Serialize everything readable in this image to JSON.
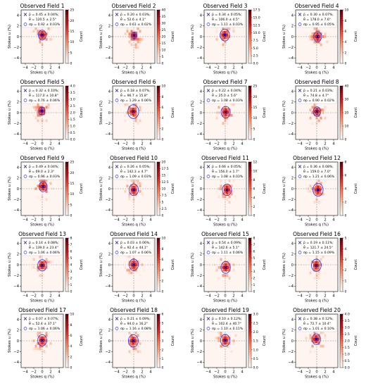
{
  "figure": {
    "xlabel": "Stokes q (%)",
    "ylabel": "Stokes u (%)",
    "colorbar_label": "Count",
    "legend_labels": {
      "p": "p̄ = {v} ± {e}%;",
      "theta": "θ̄ = {v} ± {e}°",
      "sigma": "σp = {v} ± {e}%"
    },
    "x_ticks": [
      "−4",
      "−2",
      "0",
      "2",
      "4"
    ],
    "y_ticks": [
      "−4",
      "−2",
      "0",
      "2",
      "4"
    ]
  },
  "colors": {
    "hist_low": "#fff5f0",
    "hist_high": "#67000d",
    "mean_marker": "#0000cc",
    "circle": "#3b3bff",
    "crosshair": "#8a8a8a"
  },
  "chart_data": [
    {
      "type": "heatmap",
      "title": "Observed Field 1",
      "p": [
        "0.45",
        "0.04"
      ],
      "theta": [
        "120.5",
        "2.5"
      ],
      "sigma": [
        "0.92",
        "0.03"
      ],
      "center": [
        0.0,
        0.3
      ],
      "circle_radius": 0.92,
      "cbar_max": 25,
      "cbar_ticks": [
        0,
        5,
        10,
        15,
        20,
        25
      ],
      "xlim": [
        -5,
        5
      ],
      "ylim": [
        -5,
        5
      ]
    },
    {
      "type": "heatmap",
      "title": "Observed Field 2",
      "p": [
        "0.20",
        "0.03"
      ],
      "theta": [
        "52.6",
        "4.1"
      ],
      "sigma": [
        "0.61",
        "0.02"
      ],
      "center": [
        0.1,
        0.2
      ],
      "circle_radius": 0.61,
      "cbar_max": 40,
      "cbar_ticks": [
        0,
        5,
        10,
        15,
        20,
        25,
        30,
        35,
        40
      ],
      "xlim": [
        -5,
        5
      ],
      "ylim": [
        -5,
        5
      ]
    },
    {
      "type": "heatmap",
      "title": "Observed Field 3",
      "p": [
        "0.34",
        "0.05"
      ],
      "theta": [
        "106.0",
        "4.5"
      ],
      "sigma": [
        "1.11",
        "0.03"
      ],
      "center": [
        -0.1,
        0.3
      ],
      "circle_radius": 1.11,
      "cbar_max": 17.5,
      "cbar_ticks": [
        0,
        2.5,
        5.0,
        7.5,
        10.0,
        12.5,
        15.0,
        17.5
      ],
      "xlim": [
        -5,
        5
      ],
      "ylim": [
        -5,
        5
      ]
    },
    {
      "type": "heatmap",
      "title": "Observed Field 4",
      "p": [
        "0.30",
        "0.07"
      ],
      "theta": [
        "178.0",
        "7.6"
      ],
      "sigma": [
        "0.95",
        "0.05"
      ],
      "center": [
        0.2,
        0.0
      ],
      "circle_radius": 0.95,
      "cbar_max": 10,
      "cbar_ticks": [
        0,
        2,
        4,
        6,
        8,
        10
      ],
      "xlim": [
        -5,
        5
      ],
      "ylim": [
        -5,
        5
      ]
    },
    {
      "type": "heatmap",
      "title": "Observed Field 5",
      "p": [
        "0.32",
        "0.10"
      ],
      "theta": [
        "117.0",
        "10.8"
      ],
      "sigma": [
        "0.76",
        "0.06"
      ],
      "center": [
        -0.1,
        0.3
      ],
      "circle_radius": 0.76,
      "cbar_max": 4.0,
      "cbar_ticks": [
        0,
        0.5,
        1.0,
        1.5,
        2.0,
        2.5,
        3.0,
        3.5,
        4.0
      ],
      "xlim": [
        -5,
        5
      ],
      "ylim": [
        -5,
        5
      ]
    },
    {
      "type": "heatmap",
      "title": "Observed Field 6",
      "p": [
        "0.18",
        "0.07"
      ],
      "theta": [
        "96.7",
        "15.8"
      ],
      "sigma": [
        "1.29",
        "0.06"
      ],
      "center": [
        -0.1,
        0.2
      ],
      "circle_radius": 1.29,
      "cbar_max": 10,
      "cbar_ticks": [
        0,
        2,
        4,
        6,
        8,
        10
      ],
      "xlim": [
        -5,
        5
      ],
      "ylim": [
        -5,
        5
      ]
    },
    {
      "type": "heatmap",
      "title": "Observed Field 7",
      "p": [
        "0.22",
        "0.04"
      ],
      "theta": [
        "25.0",
        "5.6"
      ],
      "sigma": [
        "1.08",
        "0.03"
      ],
      "center": [
        0.1,
        0.1
      ],
      "circle_radius": 1.08,
      "cbar_max": 25,
      "cbar_ticks": [
        0,
        5,
        10,
        15,
        20,
        25
      ],
      "xlim": [
        -5,
        5
      ],
      "ylim": [
        -5,
        5
      ]
    },
    {
      "type": "heatmap",
      "title": "Observed Field 8",
      "p": [
        "0.21",
        "0.03"
      ],
      "theta": [
        "74.8",
        "4.7"
      ],
      "sigma": [
        "0.90",
        "0.02"
      ],
      "center": [
        0.05,
        0.2
      ],
      "circle_radius": 0.9,
      "cbar_max": 40,
      "cbar_ticks": [
        0,
        10,
        20,
        30,
        40
      ],
      "xlim": [
        -5,
        5
      ],
      "ylim": [
        -5,
        5
      ]
    },
    {
      "type": "heatmap",
      "title": "Observed Field 9",
      "p": [
        "0.49",
        "0.04"
      ],
      "theta": [
        "69.0",
        "2.3"
      ],
      "sigma": [
        "0.96",
        "0.03"
      ],
      "center": [
        0.2,
        0.4
      ],
      "circle_radius": 0.96,
      "cbar_max": 25,
      "cbar_ticks": [
        0,
        5,
        10,
        15,
        20,
        25
      ],
      "xlim": [
        -5,
        5
      ],
      "ylim": [
        -5,
        5
      ]
    },
    {
      "type": "heatmap",
      "title": "Observed Field 10",
      "p": [
        "0.26",
        "0.05"
      ],
      "theta": [
        "142.3",
        "4.7"
      ],
      "sigma": [
        "1.09",
        "0.03"
      ],
      "center": [
        0.0,
        -0.2
      ],
      "circle_radius": 1.09,
      "cbar_max": 20.0,
      "cbar_ticks": [
        0,
        2.5,
        5.0,
        7.5,
        10.0,
        12.5,
        15.0,
        17.5,
        20.0
      ],
      "xlim": [
        -5,
        5
      ],
      "ylim": [
        -5,
        5
      ]
    },
    {
      "type": "heatmap",
      "title": "Observed Field 11",
      "p": [
        "0.66",
        "0.05"
      ],
      "theta": [
        "156.0",
        "1.7"
      ],
      "sigma": [
        "1.08",
        "0.03"
      ],
      "center": [
        0.4,
        -0.2
      ],
      "circle_radius": 1.08,
      "cbar_max": 12,
      "cbar_ticks": [
        0,
        2,
        4,
        6,
        8,
        10,
        12
      ],
      "xlim": [
        -5,
        5
      ],
      "ylim": [
        -5,
        5
      ]
    },
    {
      "type": "heatmap",
      "title": "Observed Field 12",
      "p": [
        "0.36",
        "0.08"
      ],
      "theta": [
        "159.0",
        "7.0"
      ],
      "sigma": [
        "1.21",
        "0.06"
      ],
      "center": [
        0.3,
        -0.2
      ],
      "circle_radius": 1.21,
      "cbar_max": 8,
      "cbar_ticks": [
        0,
        2,
        4,
        6,
        8
      ],
      "xlim": [
        -5,
        5
      ],
      "ylim": [
        -5,
        5
      ]
    },
    {
      "type": "heatmap",
      "title": "Observed Field 13",
      "p": [
        "0.14",
        "0.08"
      ],
      "theta": [
        "139.0",
        "23.4"
      ],
      "sigma": [
        "1.06",
        "0.06"
      ],
      "center": [
        0.0,
        -0.1
      ],
      "circle_radius": 1.06,
      "cbar_max": 8,
      "cbar_ticks": [
        0,
        1,
        2,
        3,
        4,
        5,
        6,
        7,
        8
      ],
      "xlim": [
        -5,
        5
      ],
      "ylim": [
        -5,
        5
      ]
    },
    {
      "type": "heatmap",
      "title": "Observed Field 14",
      "p": [
        "0.03",
        "0.06"
      ],
      "theta": [
        "92.4",
        "44.1"
      ],
      "sigma": [
        "1.07",
        "0.06"
      ],
      "center": [
        0.0,
        0.0
      ],
      "circle_radius": 1.07,
      "cbar_max": 10,
      "cbar_ticks": [
        0,
        2,
        4,
        6,
        8,
        10
      ],
      "xlim": [
        -5,
        5
      ],
      "ylim": [
        -5,
        5
      ]
    },
    {
      "type": "heatmap",
      "title": "Observed Field 15",
      "p": [
        "0.54",
        "0.09"
      ],
      "theta": [
        "142.6",
        "5.1"
      ],
      "sigma": [
        "1.11",
        "0.06"
      ],
      "center": [
        0.1,
        -0.5
      ],
      "circle_radius": 1.11,
      "cbar_max": 8,
      "cbar_ticks": [
        0,
        1,
        2,
        3,
        4,
        5,
        6,
        7,
        8
      ],
      "xlim": [
        -5,
        5
      ],
      "ylim": [
        -5,
        5
      ]
    },
    {
      "type": "heatmap",
      "title": "Observed Field 16",
      "p": [
        "0.19",
        "0.11"
      ],
      "theta": [
        "121.7",
        "24.5"
      ],
      "sigma": [
        "1.15",
        "0.09"
      ],
      "center": [
        -0.1,
        -0.1
      ],
      "circle_radius": 1.15,
      "cbar_max": 5,
      "cbar_ticks": [
        0,
        1,
        2,
        3,
        4,
        5
      ],
      "xlim": [
        -5,
        5
      ],
      "ylim": [
        -5,
        5
      ]
    },
    {
      "type": "heatmap",
      "title": "Observed Field 17",
      "p": [
        "0.07",
        "0.07"
      ],
      "theta": [
        "52.4",
        "37.1"
      ],
      "sigma": [
        "1.06",
        "0.06"
      ],
      "center": [
        0.0,
        0.1
      ],
      "circle_radius": 1.06,
      "cbar_max": 10,
      "cbar_ticks": [
        0,
        2,
        4,
        6,
        8,
        10
      ],
      "xlim": [
        -5,
        5
      ],
      "ylim": [
        -5,
        5
      ]
    },
    {
      "type": "heatmap",
      "title": "Observed Field 18",
      "p": [
        "0.21",
        "0.09"
      ],
      "theta": [
        "94.0",
        "16.2"
      ],
      "sigma": [
        "1.16",
        "0.08"
      ],
      "center": [
        -0.1,
        0.0
      ],
      "circle_radius": 1.16,
      "cbar_max": 6,
      "cbar_ticks": [
        0,
        1,
        2,
        3,
        4,
        5,
        6
      ],
      "xlim": [
        -5,
        5
      ],
      "ylim": [
        -5,
        5
      ]
    },
    {
      "type": "heatmap",
      "title": "Observed Field 19",
      "p": [
        "0.10",
        "0.12"
      ],
      "theta": [
        "102.4",
        "40.7"
      ],
      "sigma": [
        "1.10",
        "0.11"
      ],
      "center": [
        0.0,
        0.1
      ],
      "circle_radius": 1.1,
      "cbar_max": 3.0,
      "cbar_ticks": [
        0,
        0.5,
        1.0,
        1.5,
        2.0,
        2.5,
        3.0
      ],
      "xlim": [
        -5,
        5
      ],
      "ylim": [
        -5,
        5
      ]
    },
    {
      "type": "heatmap",
      "title": "Observed Field 20",
      "p": [
        "0.38",
        "0.12"
      ],
      "theta": [
        "72.7",
        "10.4"
      ],
      "sigma": [
        "1.01",
        "0.10"
      ],
      "center": [
        -0.1,
        0.3
      ],
      "circle_radius": 1.01,
      "cbar_max": 4.0,
      "cbar_ticks": [
        0,
        0.5,
        1.0,
        1.5,
        2.0,
        2.5,
        3.0,
        3.5,
        4.0
      ],
      "xlim": [
        -5,
        5
      ],
      "ylim": [
        -5,
        5
      ]
    }
  ]
}
